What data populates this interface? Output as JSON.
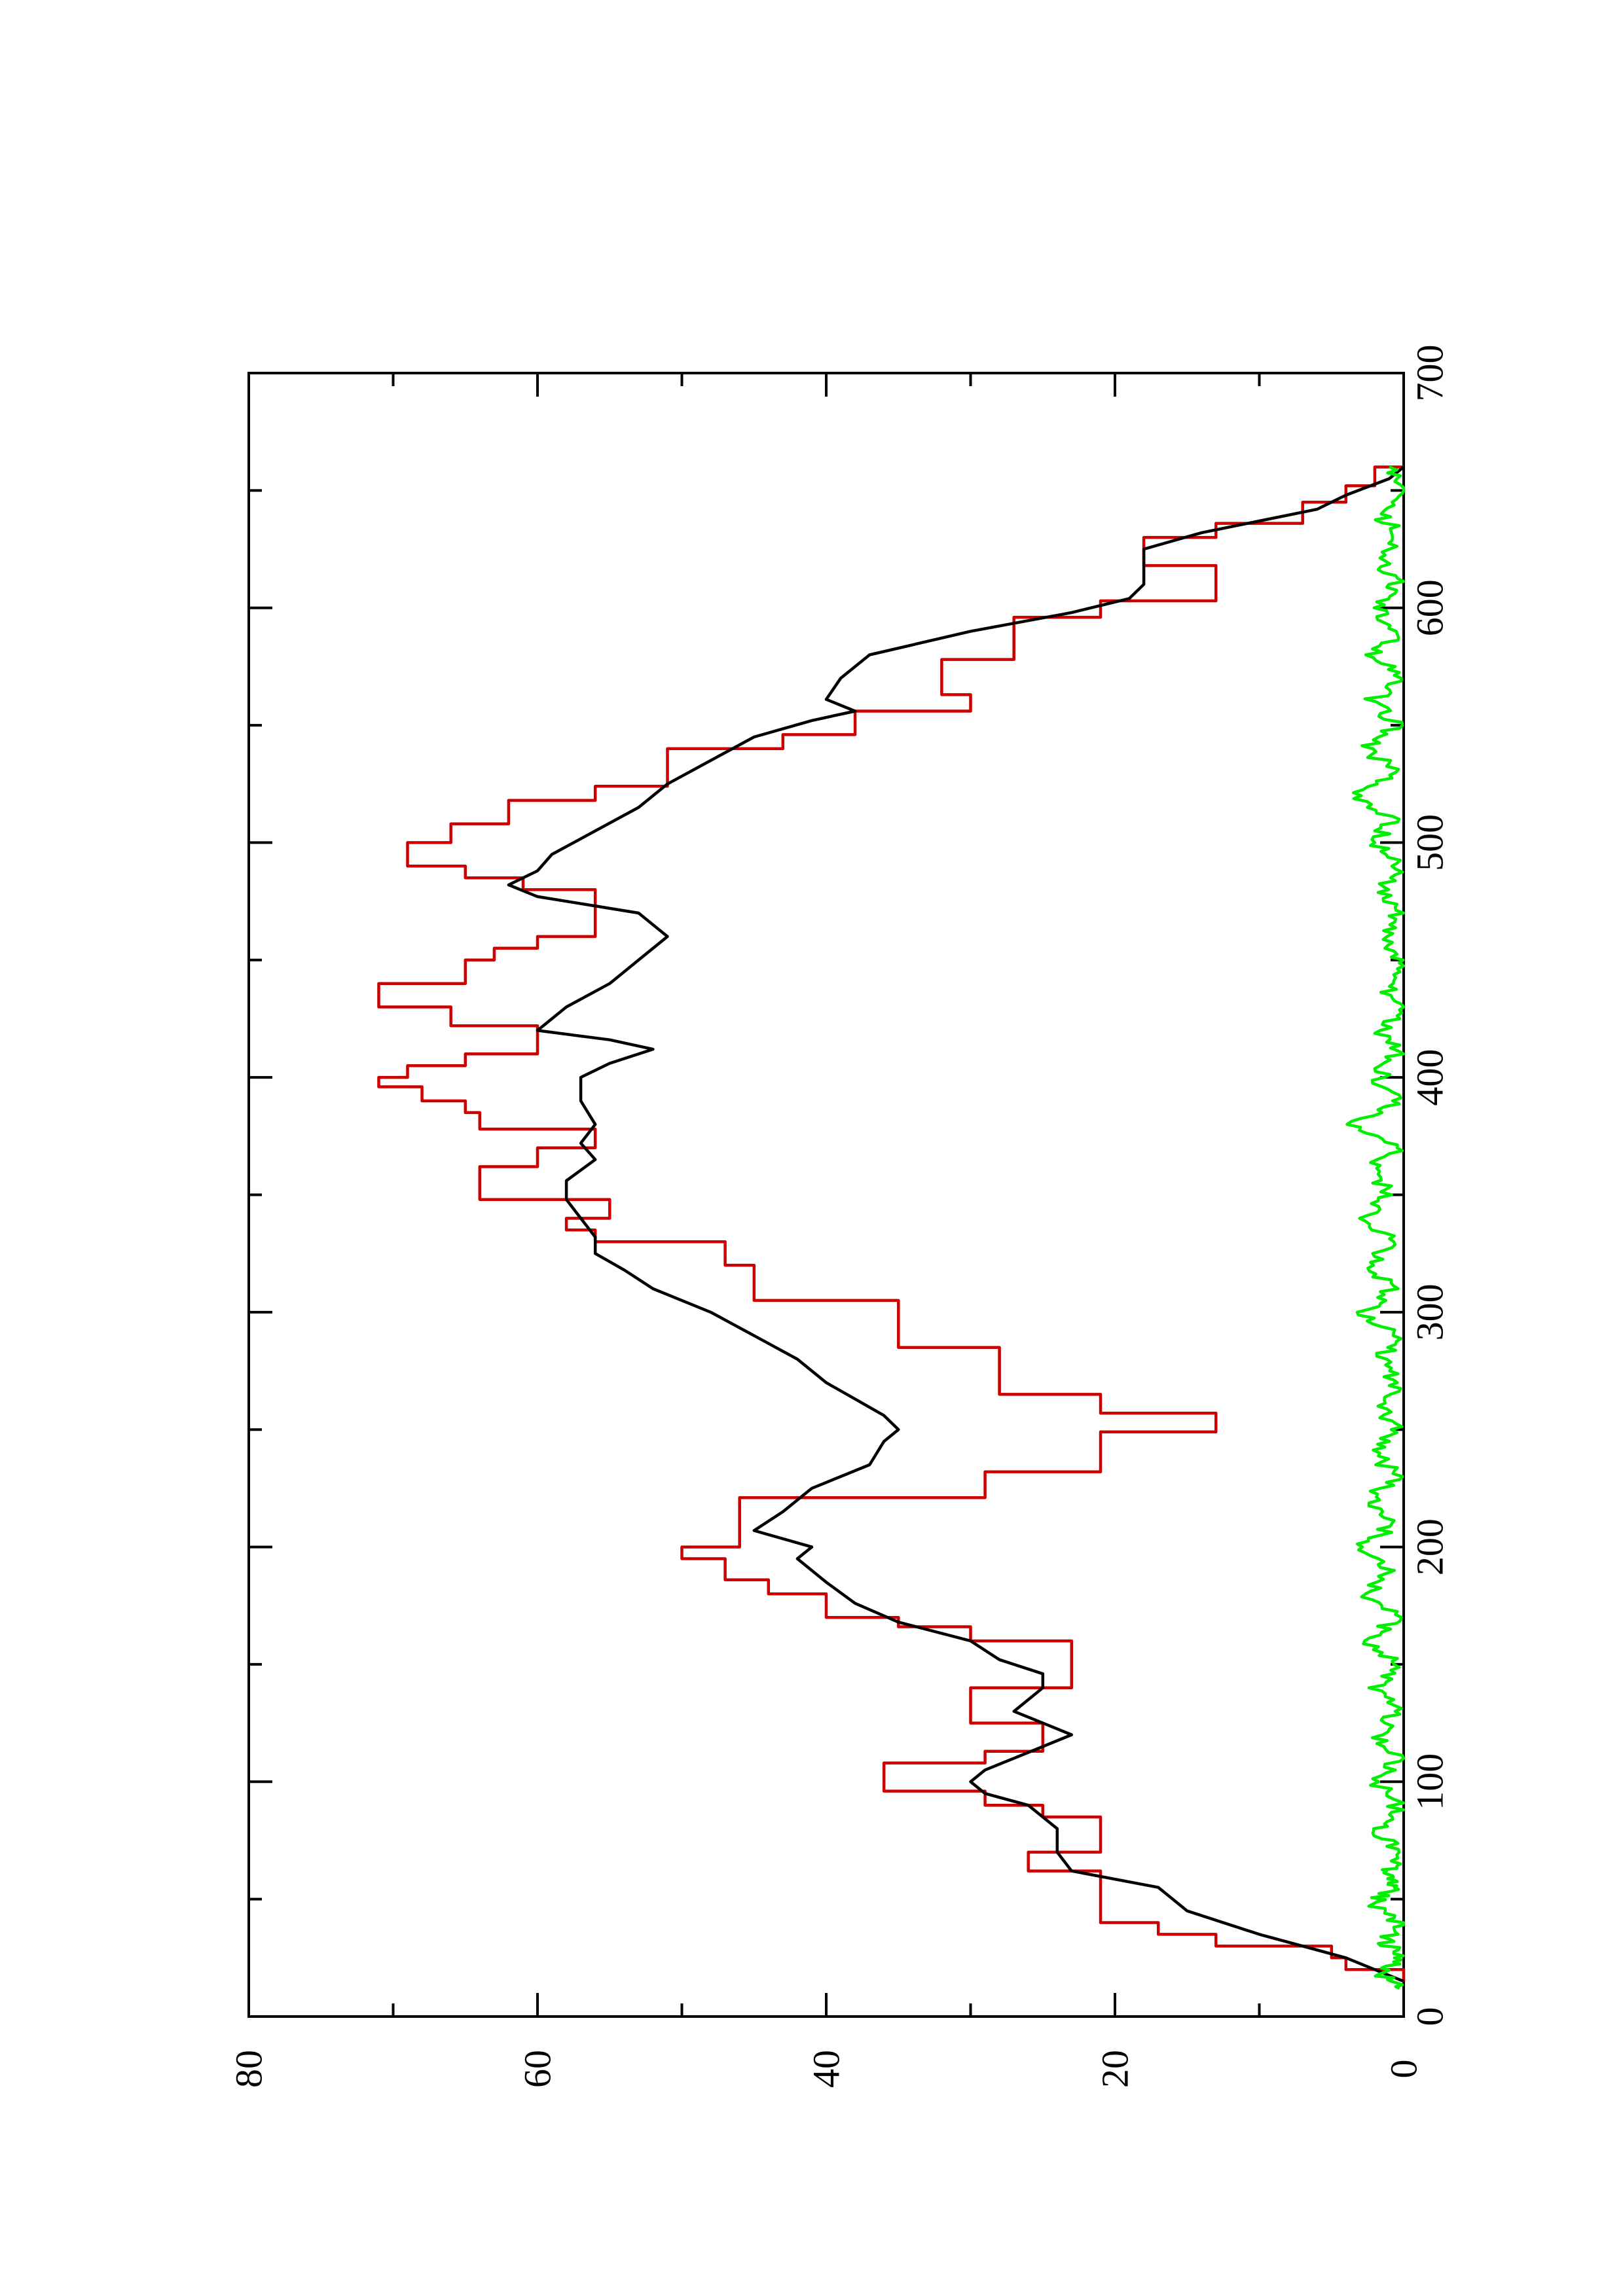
{
  "chart_data": {
    "type": "line",
    "orientation": "rotated-90",
    "title": "",
    "xlabel": "",
    "ylabel": "",
    "xlim": [
      0,
      700
    ],
    "ylim": [
      0,
      80
    ],
    "x_ticks": [
      "0",
      "100",
      "200",
      "300",
      "400",
      "500",
      "600",
      "700"
    ],
    "y_ticks": [
      "0",
      "20",
      "40",
      "60",
      "80"
    ],
    "x_minor_ticks": [
      50,
      150,
      250,
      350,
      450,
      550,
      650
    ],
    "y_minor_ticks": [
      10,
      30,
      50,
      70
    ],
    "grid": false,
    "legend": "none",
    "series": [
      {
        "color": "#cc0000",
        "step": true,
        "points": [
          [
            15,
            0
          ],
          [
            20,
            4
          ],
          [
            25,
            5
          ],
          [
            30,
            13
          ],
          [
            35,
            17
          ],
          [
            40,
            21
          ],
          [
            55,
            21
          ],
          [
            62,
            26
          ],
          [
            70,
            21
          ],
          [
            80,
            21
          ],
          [
            85,
            25
          ],
          [
            90,
            29
          ],
          [
            96,
            36
          ],
          [
            108,
            29
          ],
          [
            113,
            25
          ],
          [
            120,
            25
          ],
          [
            125,
            30
          ],
          [
            135,
            30
          ],
          [
            140,
            23
          ],
          [
            150,
            23
          ],
          [
            160,
            30
          ],
          [
            166,
            35
          ],
          [
            170,
            40
          ],
          [
            180,
            44
          ],
          [
            186,
            47
          ],
          [
            195,
            50
          ],
          [
            200,
            46
          ],
          [
            205,
            46
          ],
          [
            221,
            29
          ],
          [
            232,
            21
          ],
          [
            241,
            21
          ],
          [
            249,
            13
          ],
          [
            257,
            21
          ],
          [
            265,
            28
          ],
          [
            275,
            28
          ],
          [
            285,
            35
          ],
          [
            295,
            35
          ],
          [
            305,
            45
          ],
          [
            315,
            45
          ],
          [
            320,
            47
          ],
          [
            330,
            56
          ],
          [
            335,
            58
          ],
          [
            340,
            55
          ],
          [
            348,
            64
          ],
          [
            355,
            64
          ],
          [
            362,
            60
          ],
          [
            370,
            56
          ],
          [
            378,
            64
          ],
          [
            385,
            65
          ],
          [
            390,
            68
          ],
          [
            396,
            71
          ],
          [
            400,
            69
          ],
          [
            405,
            65
          ],
          [
            410,
            60
          ],
          [
            415,
            60
          ],
          [
            422,
            66
          ],
          [
            430,
            71
          ],
          [
            435,
            71
          ],
          [
            440,
            65
          ],
          [
            450,
            63
          ],
          [
            455,
            60
          ],
          [
            460,
            56
          ],
          [
            476,
            56
          ],
          [
            480,
            61
          ],
          [
            485,
            65
          ],
          [
            490,
            69
          ],
          [
            495,
            69
          ],
          [
            500,
            66
          ],
          [
            508,
            62
          ],
          [
            518,
            56
          ],
          [
            524,
            51
          ],
          [
            530,
            51
          ],
          [
            540,
            43
          ],
          [
            546,
            38
          ],
          [
            556,
            30
          ],
          [
            563,
            32
          ],
          [
            570,
            32
          ],
          [
            578,
            27
          ],
          [
            588,
            27
          ],
          [
            596,
            21
          ],
          [
            603,
            13
          ],
          [
            610,
            13
          ],
          [
            618,
            18
          ],
          [
            625,
            18
          ],
          [
            630,
            13
          ],
          [
            636,
            7
          ],
          [
            645,
            4
          ],
          [
            652,
            2
          ],
          [
            660,
            0
          ]
        ]
      },
      {
        "color": "#000000",
        "step": false,
        "points": [
          [
            15,
            0
          ],
          [
            20,
            2
          ],
          [
            25,
            4
          ],
          [
            35,
            10
          ],
          [
            45,
            15
          ],
          [
            55,
            17
          ],
          [
            62,
            23
          ],
          [
            70,
            24
          ],
          [
            80,
            24
          ],
          [
            90,
            26
          ],
          [
            95,
            29
          ],
          [
            100,
            30
          ],
          [
            105,
            29
          ],
          [
            115,
            25
          ],
          [
            120,
            23
          ],
          [
            125,
            25
          ],
          [
            130,
            27
          ],
          [
            140,
            25
          ],
          [
            146,
            25
          ],
          [
            152,
            28
          ],
          [
            160,
            30
          ],
          [
            168,
            35
          ],
          [
            176,
            38
          ],
          [
            185,
            40
          ],
          [
            195,
            42
          ],
          [
            200,
            41
          ],
          [
            207,
            45
          ],
          [
            215,
            43
          ],
          [
            225,
            41
          ],
          [
            235,
            37
          ],
          [
            245,
            36
          ],
          [
            250,
            35
          ],
          [
            256,
            36
          ],
          [
            263,
            38
          ],
          [
            270,
            40
          ],
          [
            280,
            42
          ],
          [
            290,
            45
          ],
          [
            300,
            48
          ],
          [
            310,
            52
          ],
          [
            318,
            54
          ],
          [
            325,
            56
          ],
          [
            332,
            56
          ],
          [
            340,
            57
          ],
          [
            348,
            58
          ],
          [
            356,
            58
          ],
          [
            365,
            56
          ],
          [
            372,
            57
          ],
          [
            380,
            56
          ],
          [
            390,
            57
          ],
          [
            400,
            57
          ],
          [
            406,
            55
          ],
          [
            412,
            52
          ],
          [
            416,
            55
          ],
          [
            420,
            60
          ],
          [
            430,
            58
          ],
          [
            440,
            55
          ],
          [
            450,
            53
          ],
          [
            460,
            51
          ],
          [
            470,
            53
          ],
          [
            477,
            60
          ],
          [
            482,
            62
          ],
          [
            488,
            60
          ],
          [
            495,
            59
          ],
          [
            505,
            56
          ],
          [
            515,
            53
          ],
          [
            525,
            51
          ],
          [
            535,
            48
          ],
          [
            545,
            45
          ],
          [
            552,
            41
          ],
          [
            556,
            38
          ],
          [
            561,
            40
          ],
          [
            570,
            39
          ],
          [
            580,
            37
          ],
          [
            590,
            30
          ],
          [
            598,
            23
          ],
          [
            604,
            19
          ],
          [
            610,
            18
          ],
          [
            618,
            18
          ],
          [
            625,
            18
          ],
          [
            632,
            14
          ],
          [
            637,
            10
          ],
          [
            642,
            6
          ],
          [
            648,
            4
          ],
          [
            655,
            1
          ],
          [
            660,
            0
          ]
        ]
      },
      {
        "color": "#00ee00",
        "step": false,
        "noisy": true,
        "description_base": 0.8,
        "points": [
          [
            12,
            0.3
          ],
          [
            18,
            1.6
          ],
          [
            25,
            0.4
          ],
          [
            32,
            1.2
          ],
          [
            40,
            0.2
          ],
          [
            48,
            2.3
          ],
          [
            55,
            0.5
          ],
          [
            60,
            1.4
          ],
          [
            65,
            0.3
          ],
          [
            75,
            1.0
          ],
          [
            80,
            2.0
          ],
          [
            88,
            0.3
          ],
          [
            100,
            1.8
          ],
          [
            110,
            0.4
          ],
          [
            120,
            1.9
          ],
          [
            130,
            0.6
          ],
          [
            140,
            2.0
          ],
          [
            150,
            0.7
          ],
          [
            160,
            2.4
          ],
          [
            170,
            0.6
          ],
          [
            180,
            2.6
          ],
          [
            190,
            0.7
          ],
          [
            200,
            2.8
          ],
          [
            210,
            0.6
          ],
          [
            220,
            2.3
          ],
          [
            230,
            0.5
          ],
          [
            240,
            2.1
          ],
          [
            250,
            0.4
          ],
          [
            260,
            1.8
          ],
          [
            270,
            0.5
          ],
          [
            280,
            1.7
          ],
          [
            290,
            0.4
          ],
          [
            300,
            2.8
          ],
          [
            310,
            0.7
          ],
          [
            320,
            2.4
          ],
          [
            330,
            0.6
          ],
          [
            340,
            2.9
          ],
          [
            350,
            0.9
          ],
          [
            360,
            2.3
          ],
          [
            370,
            0.5
          ],
          [
            380,
            3.8
          ],
          [
            390,
            0.6
          ],
          [
            400,
            1.8
          ],
          [
            410,
            0.5
          ],
          [
            420,
            1.5
          ],
          [
            430,
            0.4
          ],
          [
            440,
            1.3
          ],
          [
            450,
            0.3
          ],
          [
            460,
            1.2
          ],
          [
            470,
            0.4
          ],
          [
            480,
            1.6
          ],
          [
            490,
            0.5
          ],
          [
            500,
            2.1
          ],
          [
            510,
            0.6
          ],
          [
            520,
            3.4
          ],
          [
            530,
            0.7
          ],
          [
            540,
            2.5
          ],
          [
            550,
            0.6
          ],
          [
            560,
            2.2
          ],
          [
            570,
            0.5
          ],
          [
            580,
            2.0
          ],
          [
            590,
            0.5
          ],
          [
            600,
            1.8
          ],
          [
            610,
            0.4
          ],
          [
            620,
            1.5
          ],
          [
            630,
            0.3
          ],
          [
            640,
            1.6
          ],
          [
            650,
            0.4
          ],
          [
            660,
            1.0
          ]
        ]
      }
    ]
  }
}
